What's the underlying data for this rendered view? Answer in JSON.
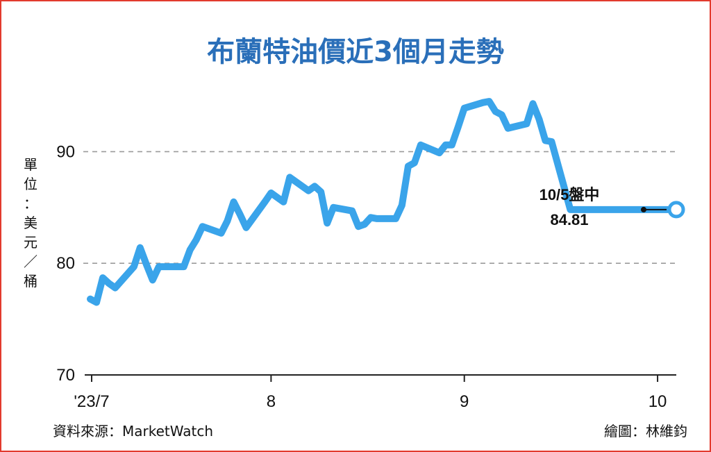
{
  "chart_data": {
    "type": "line",
    "title": "布蘭特油價近3個月走勢",
    "ylabel": "單位：美元／桶",
    "ylim": [
      70,
      96
    ],
    "yticks": [
      "70",
      "80",
      "90"
    ],
    "xticks": [
      "'23/7",
      "8",
      "9",
      "10"
    ],
    "grid": "horizontal dashed at 80 and 90",
    "source": "資料來源：MarketWatch",
    "credit": "繪圖：林維鈞",
    "annotation_date": "10/5盤中",
    "annotation_value": "84.81",
    "line_color": "#3aa4ea",
    "series": [
      {
        "x": [
          "2023-07-03",
          "2023-07-04",
          "2023-07-05",
          "2023-07-06",
          "2023-07-07",
          "2023-07-10",
          "2023-07-11",
          "2023-07-12",
          "2023-07-13",
          "2023-07-14",
          "2023-07-17",
          "2023-07-18",
          "2023-07-19",
          "2023-07-20",
          "2023-07-21",
          "2023-07-24",
          "2023-07-25",
          "2023-07-26",
          "2023-07-27",
          "2023-07-28",
          "2023-07-31",
          "2023-08-01",
          "2023-08-02",
          "2023-08-03",
          "2023-08-04",
          "2023-08-07",
          "2023-08-08",
          "2023-08-09",
          "2023-08-10",
          "2023-08-11",
          "2023-08-14",
          "2023-08-15",
          "2023-08-16",
          "2023-08-17",
          "2023-08-18",
          "2023-08-21",
          "2023-08-22",
          "2023-08-23",
          "2023-08-24",
          "2023-08-25",
          "2023-08-28",
          "2023-08-29",
          "2023-08-30",
          "2023-08-31",
          "2023-09-01",
          "2023-09-04",
          "2023-09-05",
          "2023-09-06",
          "2023-09-07",
          "2023-09-08",
          "2023-09-11",
          "2023-09-12",
          "2023-09-13",
          "2023-09-14",
          "2023-09-15",
          "2023-09-18",
          "2023-09-19",
          "2023-09-20",
          "2023-09-21",
          "2023-09-22",
          "2023-09-25",
          "2023-09-26",
          "2023-09-27",
          "2023-09-28",
          "2023-09-29",
          "2023-10-02",
          "2023-10-03",
          "2023-10-04",
          "2023-10-05"
        ],
        "values": [
          76.8,
          76.5,
          78.7,
          78.2,
          77.8,
          79.7,
          81.4,
          79.9,
          78.5,
          79.7,
          79.7,
          79.7,
          81.2,
          82.1,
          83.3,
          82.7,
          83.8,
          85.5,
          84.4,
          83.2,
          85.5,
          86.3,
          85.9,
          85.5,
          87.7,
          86.5,
          86.9,
          86.4,
          83.6,
          85.0,
          84.7,
          83.3,
          83.5,
          84.1,
          84.0,
          84.0,
          85.2,
          88.7,
          89.0,
          90.6,
          89.9,
          90.6,
          90.6,
          92.2,
          93.9,
          94.4,
          94.5,
          93.6,
          93.3,
          92.1,
          92.5,
          94.3,
          92.9,
          91.0,
          90.9,
          84.81,
          84.81,
          84.81,
          84.81,
          84.81,
          84.81,
          84.81,
          84.81,
          84.81,
          84.81,
          84.81,
          84.81,
          84.81,
          84.81
        ]
      }
    ]
  }
}
